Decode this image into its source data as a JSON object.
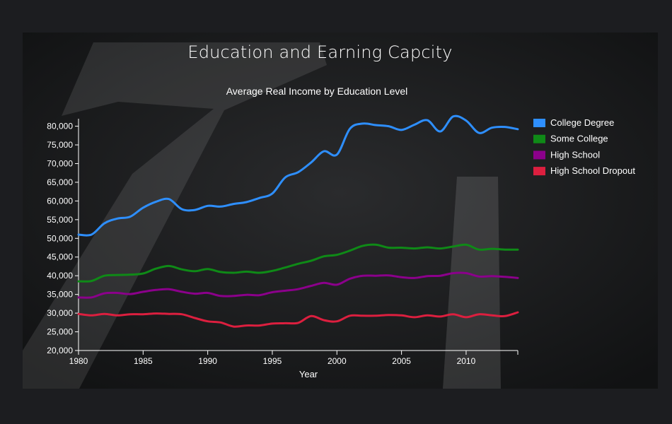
{
  "page": {
    "title": "Education and Earning Capcity"
  },
  "chart_data": {
    "type": "line",
    "title": "Average Real Income by Education Level",
    "xlabel": "Year",
    "ylabel": "",
    "xlim": [
      1980,
      2014
    ],
    "ylim": [
      20000,
      82000
    ],
    "x_ticks": [
      1980,
      1985,
      1990,
      1995,
      2000,
      2005,
      2010
    ],
    "y_ticks": [
      20000,
      25000,
      30000,
      35000,
      40000,
      45000,
      50000,
      55000,
      60000,
      65000,
      70000,
      75000,
      80000
    ],
    "grid": false,
    "legend_position": "right",
    "x": [
      1980,
      1981,
      1982,
      1983,
      1984,
      1985,
      1986,
      1987,
      1988,
      1989,
      1990,
      1991,
      1992,
      1993,
      1994,
      1995,
      1996,
      1997,
      1998,
      1999,
      2000,
      2001,
      2002,
      2003,
      2004,
      2005,
      2006,
      2007,
      2008,
      2009,
      2010,
      2011,
      2012,
      2013,
      2014
    ],
    "series": [
      {
        "name": "College Degree",
        "color": "#2e8fff",
        "values": [
          51000,
          51000,
          54000,
          55300,
          55800,
          58200,
          59800,
          60500,
          57800,
          57600,
          58700,
          58500,
          59200,
          59700,
          60800,
          62000,
          66300,
          67700,
          70300,
          73300,
          72400,
          79300,
          80700,
          80300,
          80000,
          79000,
          80400,
          81600,
          78600,
          82600,
          81500,
          78200,
          79600,
          79800,
          79200
        ]
      },
      {
        "name": "Some College",
        "color": "#0f8a17",
        "values": [
          38500,
          38600,
          40000,
          40200,
          40300,
          40600,
          41900,
          42600,
          41700,
          41200,
          41800,
          41000,
          40800,
          41100,
          40800,
          41300,
          42200,
          43200,
          44000,
          45200,
          45600,
          46700,
          48000,
          48300,
          47500,
          47500,
          47300,
          47600,
          47300,
          47800,
          48300,
          47000,
          47200,
          47000,
          47000
        ]
      },
      {
        "name": "High School",
        "color": "#8b008b",
        "values": [
          34200,
          34200,
          35300,
          35400,
          35100,
          35700,
          36200,
          36400,
          35700,
          35200,
          35400,
          34600,
          34600,
          34900,
          34800,
          35600,
          36000,
          36400,
          37300,
          38100,
          37600,
          39200,
          40000,
          40000,
          40100,
          39600,
          39400,
          39900,
          40000,
          40700,
          40700,
          39800,
          39900,
          39700,
          39400
        ]
      },
      {
        "name": "High School Dropout",
        "color": "#dc1f3f",
        "values": [
          29800,
          29400,
          29800,
          29400,
          29700,
          29700,
          29900,
          29800,
          29700,
          28700,
          27800,
          27500,
          26400,
          26700,
          26700,
          27200,
          27300,
          27400,
          29200,
          28100,
          27800,
          29300,
          29300,
          29300,
          29500,
          29400,
          28900,
          29400,
          29100,
          29700,
          28900,
          29700,
          29400,
          29200,
          30200
        ]
      }
    ]
  }
}
